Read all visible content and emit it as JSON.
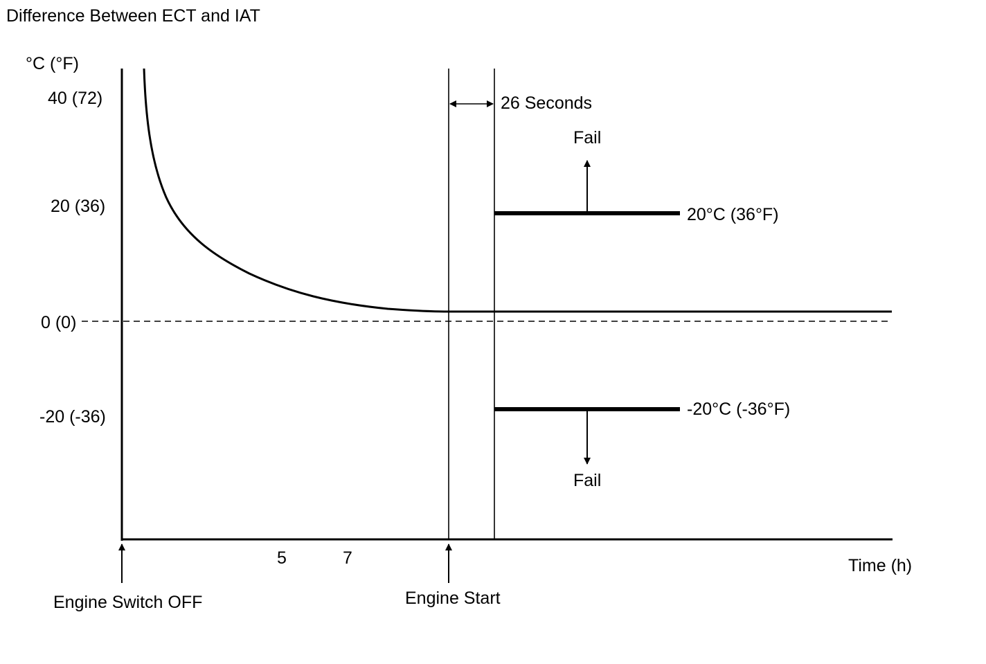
{
  "title": "Difference Between ECT and IAT",
  "y_axis": {
    "unit_label": "°C (°F)",
    "ticks": [
      {
        "value": 40,
        "label": "40 (72)"
      },
      {
        "value": 20,
        "label": "20 (36)"
      },
      {
        "value": 0,
        "label": "0 (0)"
      },
      {
        "value": -20,
        "label": "-20 (-36)"
      }
    ]
  },
  "x_axis": {
    "label": "Time (h)",
    "ticks": [
      {
        "value": 5,
        "label": "5"
      },
      {
        "value": 7,
        "label": "7"
      }
    ]
  },
  "events": {
    "engine_off": "Engine Switch OFF",
    "engine_start": "Engine Start"
  },
  "delay_label": "26 Seconds",
  "thresholds": {
    "upper": {
      "value": 20,
      "label": "20°C (36°F)",
      "fail_label": "Fail"
    },
    "lower": {
      "value": -20,
      "label": "-20°C (-36°F)",
      "fail_label": "Fail"
    }
  },
  "curve": {
    "description_values": "temperature difference decays toward ~1 °C above 0 after engine switch off"
  },
  "colors": {
    "ink": "#000000",
    "background": "#ffffff"
  }
}
